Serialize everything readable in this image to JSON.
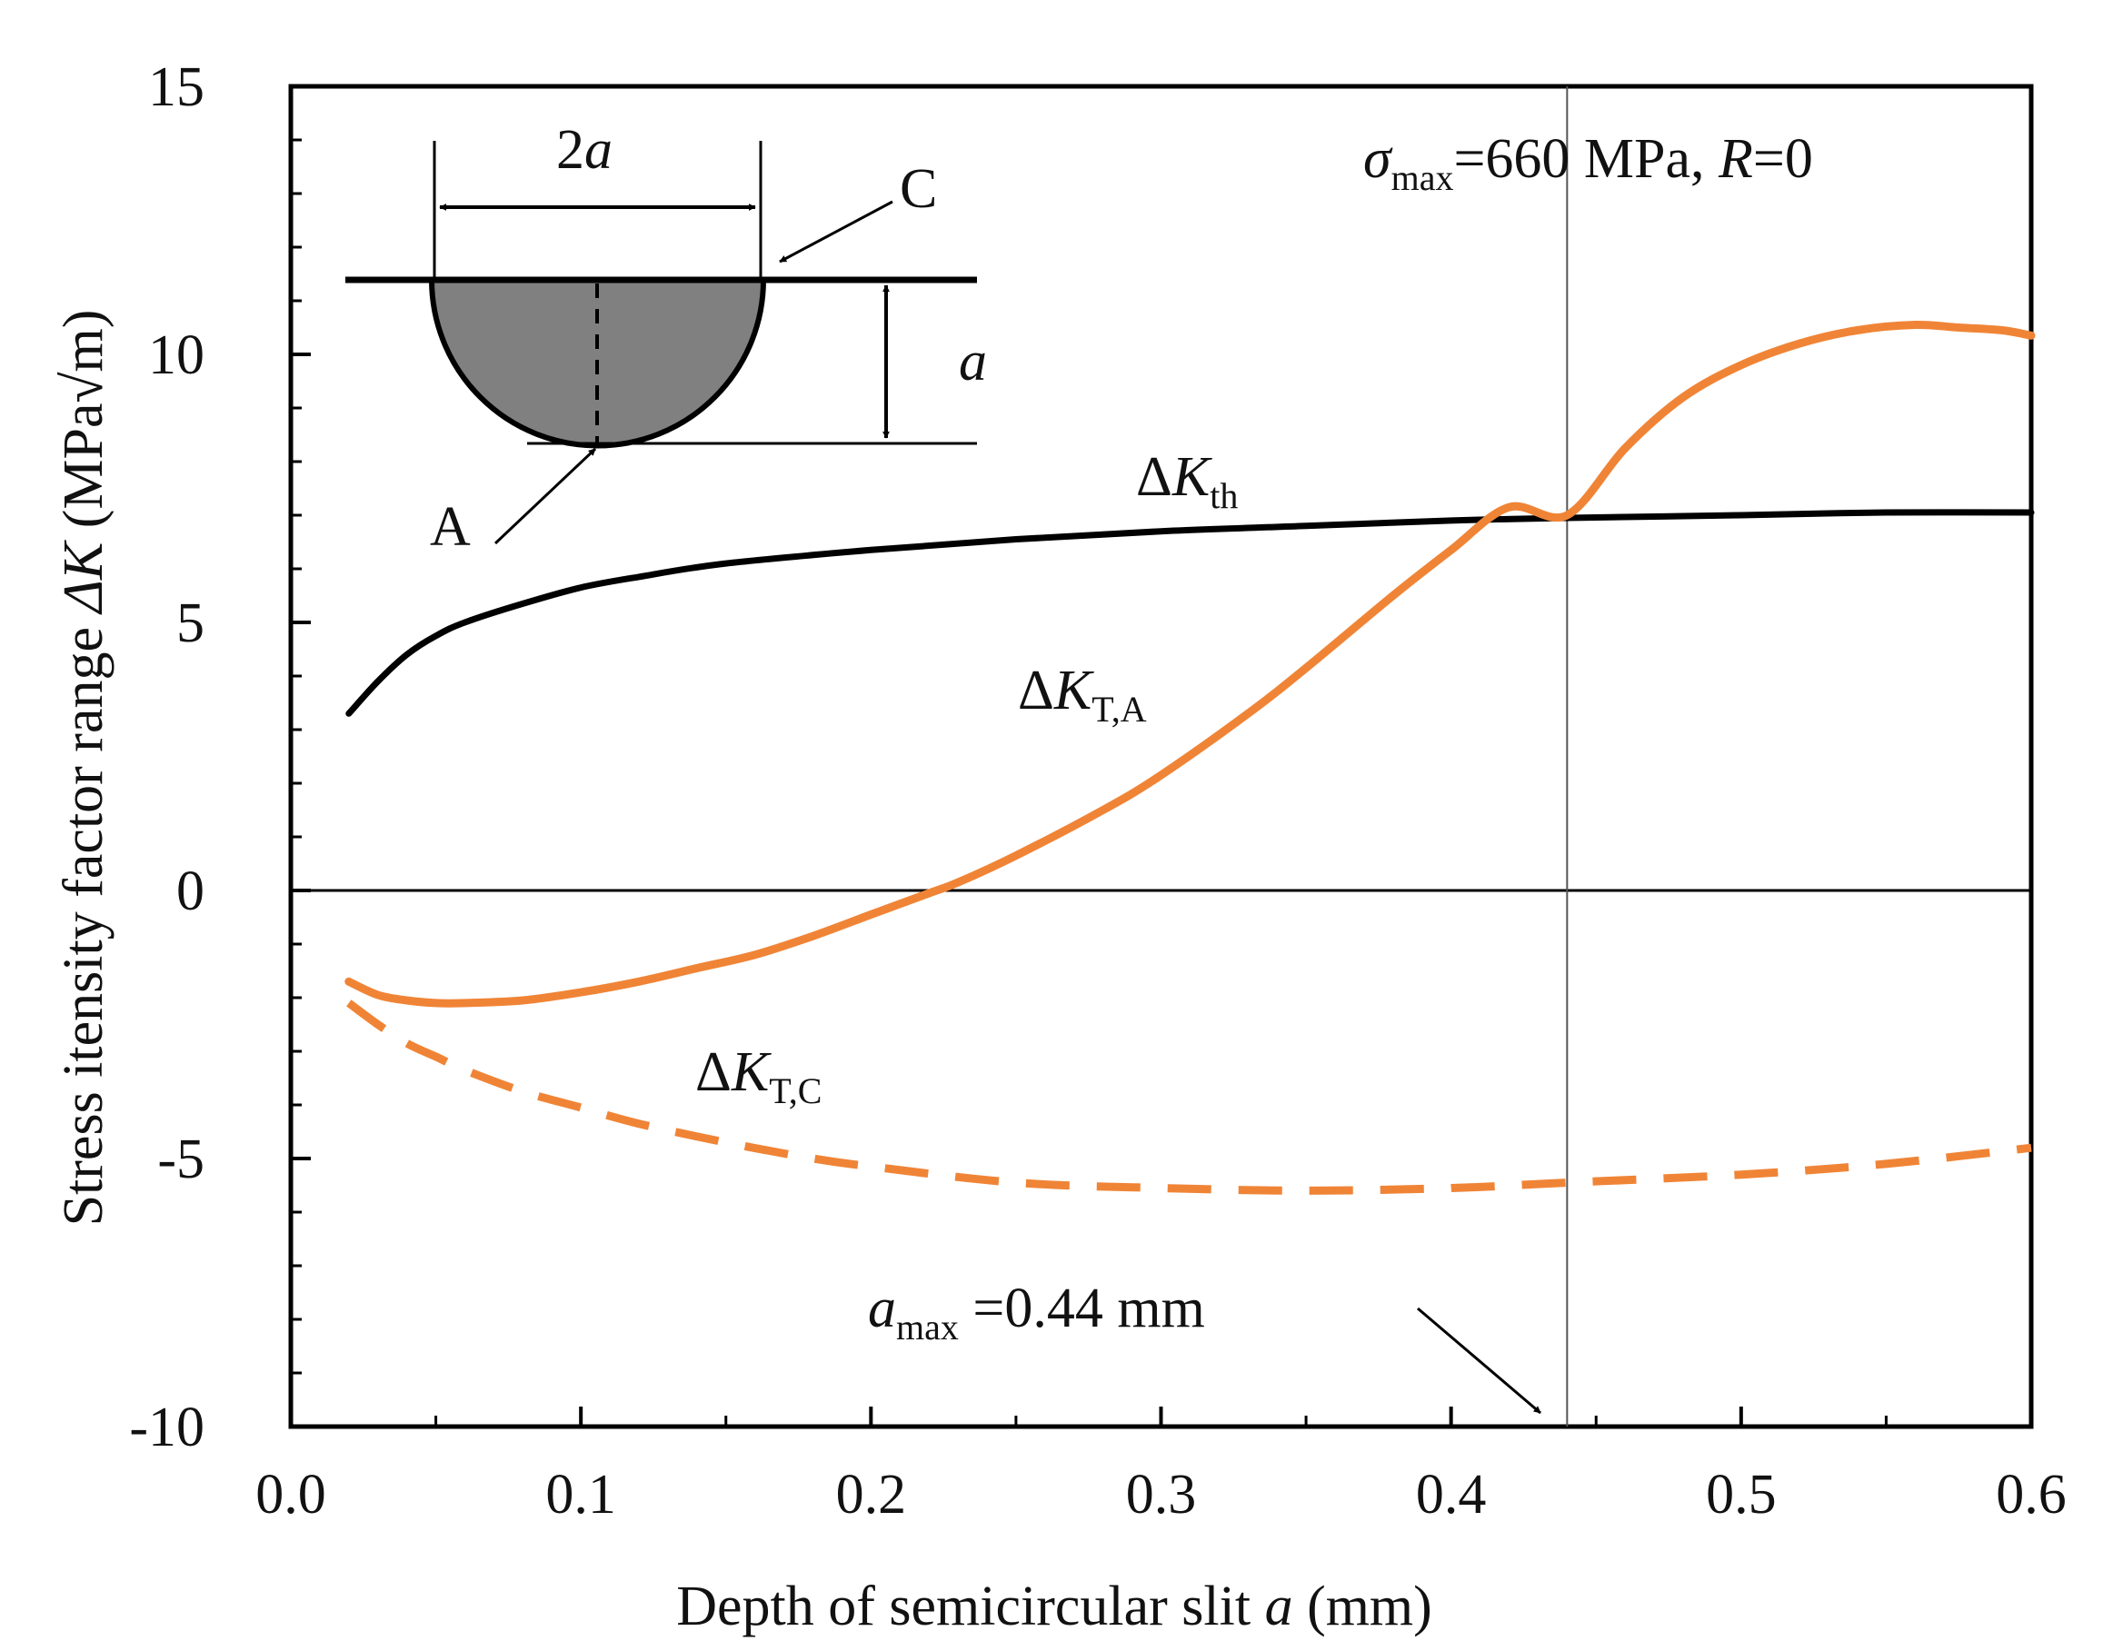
{
  "chart_data": {
    "type": "line",
    "title": "",
    "xlabel": {
      "main": "Depth of semicircular slit ",
      "var": "a",
      "unit": " (mm)"
    },
    "ylabel": {
      "main": "Stress itensity factor range ",
      "var": "ΔK",
      "unit": " (MPa√m)"
    },
    "xlim": [
      0.0,
      0.6
    ],
    "ylim": [
      -10,
      15
    ],
    "x_ticks": [
      "0.0",
      "0.1",
      "0.2",
      "0.3",
      "0.4",
      "0.5",
      "0.6"
    ],
    "x_tick_values": [
      0.0,
      0.1,
      0.2,
      0.3,
      0.4,
      0.5,
      0.6
    ],
    "y_ticks": [
      "15",
      "10",
      "5",
      "0",
      "-5",
      "-10"
    ],
    "y_tick_values": [
      15,
      10,
      5,
      0,
      -5,
      -10
    ],
    "reference_lines": {
      "horizontal_y": 0,
      "vertical_x": 0.44
    },
    "series": [
      {
        "name": "ΔK_th",
        "label": {
          "delta": "Δ",
          "var": "K",
          "sub": "th"
        },
        "color": "#000000",
        "style": "solid",
        "x": [
          0.02,
          0.03,
          0.04,
          0.05,
          0.06,
          0.08,
          0.1,
          0.12,
          0.15,
          0.2,
          0.25,
          0.3,
          0.35,
          0.4,
          0.44,
          0.5,
          0.55,
          0.6
        ],
        "y": [
          3.3,
          3.9,
          4.4,
          4.75,
          5.0,
          5.35,
          5.65,
          5.85,
          6.1,
          6.35,
          6.55,
          6.7,
          6.8,
          6.9,
          6.95,
          7.0,
          7.05,
          7.05
        ]
      },
      {
        "name": "ΔK_T,A",
        "label": {
          "delta": "Δ",
          "var": "K",
          "sub": "T,A"
        },
        "color": "#f08436",
        "style": "solid",
        "x": [
          0.02,
          0.03,
          0.04,
          0.05,
          0.06,
          0.08,
          0.1,
          0.12,
          0.14,
          0.16,
          0.18,
          0.2,
          0.22,
          0.23,
          0.25,
          0.28,
          0.3,
          0.33,
          0.35,
          0.38,
          0.4,
          0.42,
          0.44,
          0.46,
          0.48,
          0.5,
          0.52,
          0.54,
          0.56,
          0.575,
          0.59,
          0.6
        ],
        "y": [
          -1.7,
          -1.95,
          -2.05,
          -2.1,
          -2.1,
          -2.05,
          -1.9,
          -1.7,
          -1.45,
          -1.2,
          -0.85,
          -0.45,
          -0.05,
          0.15,
          0.65,
          1.5,
          2.15,
          3.3,
          4.15,
          5.5,
          6.35,
          7.15,
          7.0,
          8.25,
          9.2,
          9.8,
          10.2,
          10.45,
          10.55,
          10.5,
          10.45,
          10.35
        ]
      },
      {
        "name": "ΔK_T,C",
        "label": {
          "delta": "Δ",
          "var": "K",
          "sub": "T,C"
        },
        "color": "#f08436",
        "style": "dashed",
        "x": [
          0.02,
          0.03,
          0.04,
          0.05,
          0.06,
          0.08,
          0.1,
          0.12,
          0.15,
          0.18,
          0.2,
          0.25,
          0.3,
          0.35,
          0.4,
          0.44,
          0.5,
          0.55,
          0.6
        ],
        "y": [
          -2.1,
          -2.5,
          -2.85,
          -3.1,
          -3.35,
          -3.75,
          -4.05,
          -4.35,
          -4.7,
          -5.0,
          -5.15,
          -5.45,
          -5.55,
          -5.6,
          -5.55,
          -5.45,
          -5.3,
          -5.1,
          -4.8
        ]
      }
    ],
    "annotations": {
      "stress": {
        "sigma": "σ",
        "sub": "max",
        "rest": "=660 MPa, ",
        "r_var": "R",
        "r_rest": "=0"
      },
      "amax": {
        "var": "a",
        "sub": "max",
        "rest": " =0.44 mm"
      },
      "inset": {
        "width_label_num": "2",
        "width_label_var": "a",
        "depth_label": "a",
        "point_c": "C",
        "point_a": "A"
      }
    }
  }
}
